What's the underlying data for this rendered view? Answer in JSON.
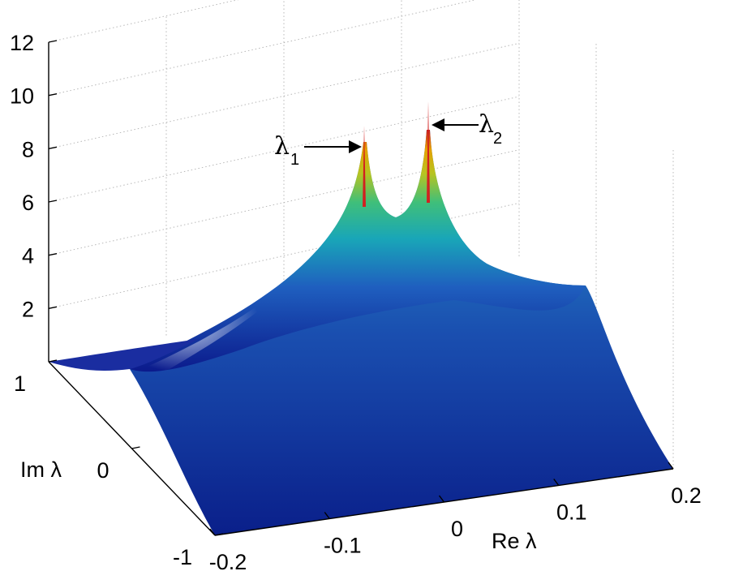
{
  "chart_data": {
    "type": "surface",
    "zticks": [
      "2",
      "4",
      "6",
      "8",
      "10",
      "12"
    ],
    "zlim": [
      0,
      12
    ],
    "re_ticks": [
      "-0.2",
      "-0.1",
      "0",
      "0.1",
      "0.2"
    ],
    "re_lim": [
      -0.2,
      0.2
    ],
    "im_ticks": [
      "1",
      "0",
      "-1"
    ],
    "im_lim": [
      -1,
      1
    ],
    "xlabel": "Re λ",
    "ylabel": "Im λ",
    "grid": true,
    "colormap": "jet",
    "peaks": [
      {
        "label": "λ",
        "subscript": "1",
        "re": -0.03,
        "im": 0,
        "height": 8.5
      },
      {
        "label": "λ",
        "subscript": "2",
        "re": 0.03,
        "im": 0,
        "height": 9.3
      }
    ],
    "baseline_height": 0.0,
    "ridge_height_at_center": 5.8
  }
}
